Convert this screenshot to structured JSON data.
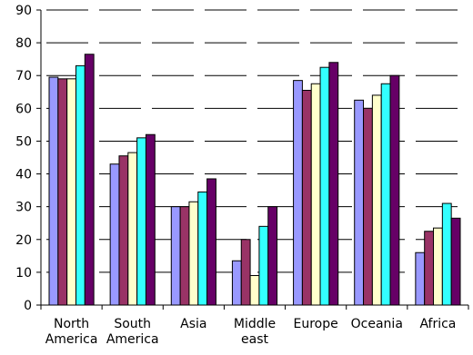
{
  "chart_data": {
    "type": "bar",
    "title": "",
    "xlabel": "",
    "ylabel": "",
    "ylim": [
      0,
      90
    ],
    "yticks": [
      0,
      10,
      20,
      30,
      40,
      50,
      60,
      70,
      80,
      90
    ],
    "grid": "horizontal dashed",
    "legend": "none",
    "categories": [
      [
        "North",
        "America"
      ],
      [
        "South",
        "America"
      ],
      [
        "Asia"
      ],
      [
        "Middle",
        "east"
      ],
      [
        "Europe"
      ],
      [
        "Oceania"
      ],
      [
        "Africa"
      ]
    ],
    "series": [
      {
        "color": "#9999ff",
        "values": [
          69.5,
          43,
          30,
          13.5,
          68.5,
          62.5,
          16
        ]
      },
      {
        "color": "#993366",
        "values": [
          69,
          45.5,
          30,
          20,
          65.5,
          60,
          22.5
        ]
      },
      {
        "color": "#ffffcc",
        "values": [
          69,
          46.5,
          31.5,
          9,
          67.5,
          64,
          23.5
        ]
      },
      {
        "color": "#33ffff",
        "values": [
          73,
          51,
          34.5,
          24,
          72.5,
          67.5,
          31
        ]
      },
      {
        "color": "#660066",
        "values": [
          76.5,
          52,
          38.5,
          30,
          74,
          70,
          26.5
        ]
      }
    ]
  }
}
